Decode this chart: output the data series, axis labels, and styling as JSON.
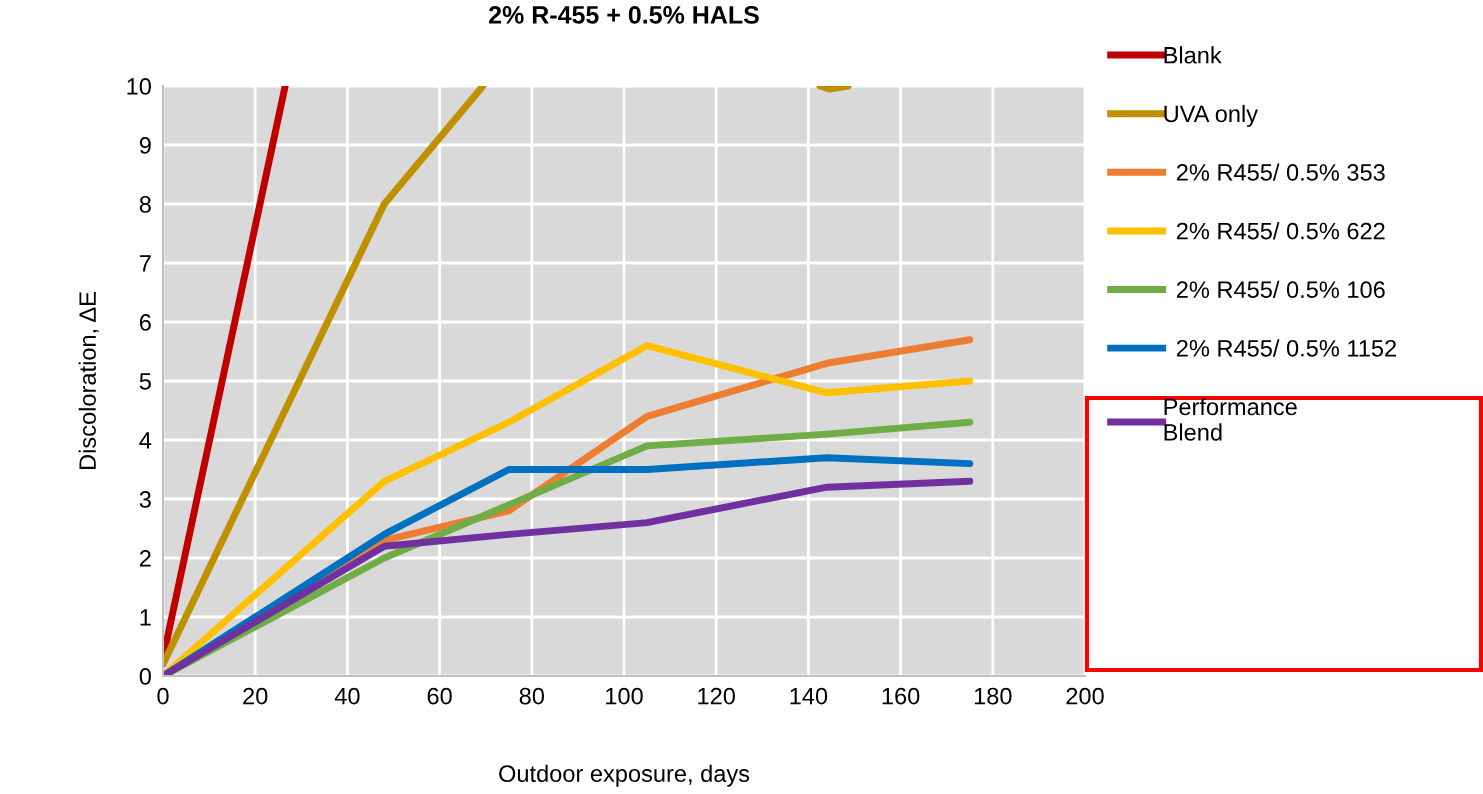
{
  "chart_data": {
    "type": "line",
    "title": "2% R-455 + 0.5% HALS",
    "xlabel": "Outdoor exposure, days",
    "ylabel": "Discoloration, ΔE",
    "xlim": [
      0,
      200
    ],
    "xticks": [
      0,
      20,
      40,
      60,
      80,
      100,
      120,
      140,
      160,
      180,
      200
    ],
    "ylim": [
      0,
      10
    ],
    "yticks": [
      0,
      1,
      2,
      3,
      4,
      5,
      6,
      7,
      8,
      9,
      10
    ],
    "grid": true,
    "legend": "right",
    "marker": "none",
    "line_style": "solid",
    "series": [
      {
        "name": "Blank",
        "color": "#c00000",
        "x": [
          0,
          26.5
        ],
        "values": [
          0.3,
          10
        ]
      },
      {
        "name": "UVA only",
        "color": "#bf9000",
        "x": [
          0,
          48,
          69.4,
          106,
          142.5,
          144.5,
          148.6
        ],
        "values": [
          0.2,
          8,
          10,
          null,
          10,
          9.95,
          10
        ]
      },
      {
        "name": "  2% R455/ 0.5% 353",
        "color": "#ed7d31",
        "x": [
          0,
          48,
          75,
          105,
          144,
          175
        ],
        "values": [
          0,
          2.3,
          2.8,
          4.4,
          5.3,
          5.7
        ]
      },
      {
        "name": "  2% R455/ 0.5% 622",
        "color": "#ffc000",
        "x": [
          0,
          48,
          75,
          105,
          144,
          175
        ],
        "values": [
          0,
          3.3,
          4.3,
          5.6,
          4.8,
          5.0
        ]
      },
      {
        "name": "  2% R455/ 0.5% 106",
        "color": "#70ad47",
        "x": [
          0,
          48,
          75,
          105,
          144,
          175
        ],
        "values": [
          0,
          2.0,
          2.9,
          3.9,
          4.1,
          4.3
        ]
      },
      {
        "name": "  2% R455/ 0.5% 1152",
        "color": "#0070c0",
        "x": [
          0,
          48,
          75,
          105,
          144,
          175
        ],
        "values": [
          0,
          2.4,
          3.5,
          3.5,
          3.7,
          3.6
        ]
      },
      {
        "name": "Performance\nBlend",
        "color": "#7030a0",
        "x": [
          0,
          48,
          75,
          105,
          144,
          175
        ],
        "values": [
          0,
          2.2,
          2.4,
          2.6,
          3.2,
          3.3
        ]
      }
    ]
  }
}
